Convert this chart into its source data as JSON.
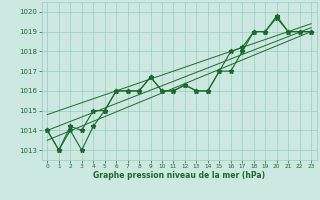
{
  "title": "Graphe pression niveau de la mer (hPa)",
  "bg_color": "#cce8e0",
  "grid_color": "#99ccc4",
  "line_color": "#1a6b2a",
  "xlim": [
    -0.5,
    23.5
  ],
  "ylim": [
    1012.5,
    1020.5
  ],
  "yticks": [
    1013,
    1014,
    1015,
    1016,
    1017,
    1018,
    1019,
    1020
  ],
  "xticks": [
    0,
    1,
    2,
    3,
    4,
    5,
    6,
    7,
    8,
    9,
    10,
    11,
    12,
    13,
    14,
    15,
    16,
    17,
    18,
    19,
    20,
    21,
    22,
    23
  ],
  "line1": [
    1014.0,
    1013.0,
    1014.0,
    1013.0,
    1014.2,
    1015.0,
    1016.0,
    1016.0,
    1016.0,
    1016.7,
    1016.0,
    1016.0,
    1016.3,
    1016.0,
    1016.0,
    1017.0,
    1017.0,
    1018.0,
    1019.0,
    1019.0,
    1019.8,
    1019.0,
    1019.0,
    1019.0
  ],
  "line2": [
    1014.0,
    1013.0,
    1014.2,
    1014.0,
    1015.0,
    1015.0,
    1016.0,
    1016.0,
    1016.0,
    1016.7,
    1016.0,
    1016.0,
    1016.3,
    1016.0,
    1016.0,
    1017.0,
    1018.0,
    1018.2,
    1019.0,
    1019.0,
    1019.7,
    1019.0,
    1019.0,
    1019.0
  ],
  "line_trend1": [
    [
      0,
      23
    ],
    [
      1013.5,
      1019.0
    ]
  ],
  "line_trend2": [
    [
      0,
      23
    ],
    [
      1014.0,
      1019.2
    ]
  ],
  "line_trend3": [
    [
      0,
      23
    ],
    [
      1014.8,
      1019.4
    ]
  ]
}
